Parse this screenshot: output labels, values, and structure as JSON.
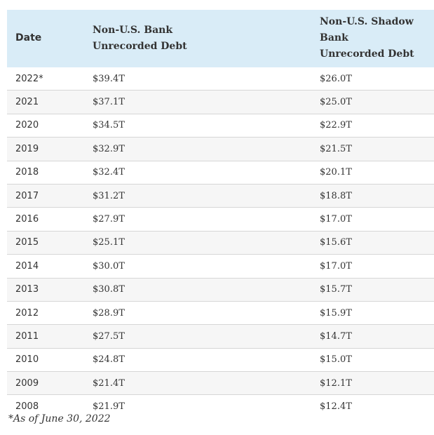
{
  "table": {
    "headers": {
      "date": "Date",
      "bank_line1": "Non-U.S. Bank",
      "bank_line2": "Unrecorded Debt",
      "shadow_line1": "Non-U.S. Shadow Bank",
      "shadow_line2": "Unrecorded Debt"
    },
    "rows": [
      {
        "date": "2022*",
        "bank": "$39.4T",
        "shadow": "$26.0T"
      },
      {
        "date": "2021",
        "bank": "$37.1T",
        "shadow": "$25.0T"
      },
      {
        "date": "2020",
        "bank": "$34.5T",
        "shadow": "$22.9T"
      },
      {
        "date": "2019",
        "bank": "$32.9T",
        "shadow": "$21.5T"
      },
      {
        "date": "2018",
        "bank": "$32.4T",
        "shadow": "$20.1T"
      },
      {
        "date": "2017",
        "bank": "$31.2T",
        "shadow": "$18.8T"
      },
      {
        "date": "2016",
        "bank": "$27.9T",
        "shadow": "$17.0T"
      },
      {
        "date": "2015",
        "bank": "$25.1T",
        "shadow": "$15.6T"
      },
      {
        "date": "2014",
        "bank": "$30.0T",
        "shadow": "$17.0T"
      },
      {
        "date": "2013",
        "bank": "$30.8T",
        "shadow": "$15.7T"
      },
      {
        "date": "2012",
        "bank": "$28.9T",
        "shadow": "$15.9T"
      },
      {
        "date": "2011",
        "bank": "$27.5T",
        "shadow": "$14.7T"
      },
      {
        "date": "2010",
        "bank": "$24.8T",
        "shadow": "$15.0T"
      },
      {
        "date": "2009",
        "bank": "$21.4T",
        "shadow": "$12.1T"
      },
      {
        "date": "2008",
        "bank": "$21.9T",
        "shadow": "$12.4T"
      }
    ]
  },
  "footnote": "*As of June 30, 2022",
  "colors": {
    "header_bg": "#d9ecf7",
    "stripe_bg": "#f6f6f6",
    "divider": "#d6d6d6",
    "text": "#333333"
  }
}
